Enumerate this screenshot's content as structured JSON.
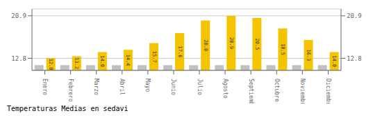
{
  "chart_data": {
    "type": "bar",
    "title": "Temperaturas Medias en sedavi",
    "categories": [
      "Enero",
      "Febrero",
      "Marzo",
      "Abril",
      "Mayo",
      "Junio",
      "Julio",
      "Agosto",
      "Septiembre",
      "Octubre",
      "Noviembre",
      "Diciembre"
    ],
    "series": [
      {
        "color": "#C0C0C0",
        "values": [
          11.5,
          11.5,
          11.5,
          11.5,
          11.5,
          11.5,
          11.5,
          11.5,
          11.5,
          11.5,
          11.5,
          11.5
        ]
      },
      {
        "color": "#F5C400",
        "values": [
          12.8,
          13.2,
          14.0,
          14.4,
          15.7,
          17.6,
          20.0,
          20.9,
          20.5,
          18.5,
          16.3,
          14.0
        ],
        "data_labels": true,
        "value_labels": [
          "12.8",
          "13.2",
          "14.0",
          "14.4",
          "15.7",
          "17.6",
          "20.0",
          "20.9",
          "20.5",
          "18.5",
          "16.3",
          "14.0"
        ]
      }
    ],
    "ylim": [
      10.5,
      22.2
    ],
    "yticks": [
      12.8,
      20.9
    ],
    "y2lim": [
      10.5,
      22.2
    ],
    "y2ticks": [
      12.8,
      20.9
    ],
    "grid": true
  }
}
